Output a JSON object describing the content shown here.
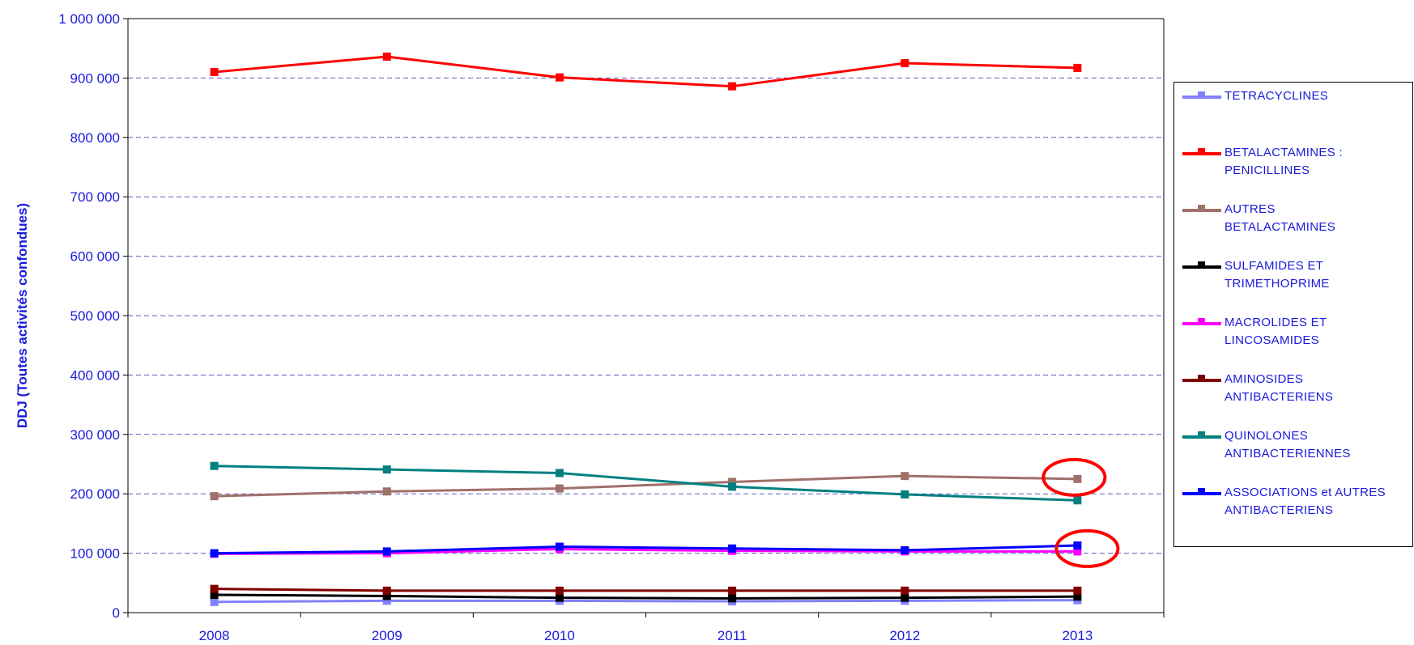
{
  "chart_data": {
    "type": "line",
    "title": "",
    "xlabel": "",
    "ylabel": "DDJ (Toutes activités confondues)",
    "categories": [
      "2008",
      "2009",
      "2010",
      "2011",
      "2012",
      "2013"
    ],
    "ylim": [
      0,
      1000000
    ],
    "yticks": [
      0,
      100000,
      200000,
      300000,
      400000,
      500000,
      600000,
      700000,
      800000,
      900000,
      1000000
    ],
    "ytick_labels": [
      "0",
      "100 000",
      "200 000",
      "300 000",
      "400 000",
      "500 000",
      "600 000",
      "700 000",
      "800 000",
      "900 000",
      "1 000 000"
    ],
    "grid": "horizontal dashed",
    "legend_position": "right",
    "series": [
      {
        "name": "TETRACYCLINES",
        "color": "#8080ff",
        "values": [
          18000,
          20000,
          20000,
          19000,
          20000,
          21000
        ]
      },
      {
        "name": "BETALACTAMINES :\nPENICILLINES",
        "color": "#ff0000",
        "values": [
          910000,
          936000,
          901000,
          886000,
          925000,
          917000
        ]
      },
      {
        "name": "AUTRES\nBETALACTAMINES",
        "color": "#a0706a",
        "values": [
          196000,
          204000,
          209000,
          220000,
          230000,
          225000
        ]
      },
      {
        "name": "SULFAMIDES ET\nTRIMETHOPRIME",
        "color": "#000000",
        "values": [
          30000,
          28000,
          25000,
          24000,
          25000,
          27000
        ]
      },
      {
        "name": "MACROLIDES ET\nLINCOSAMIDES",
        "color": "#ff00ff",
        "values": [
          99000,
          100000,
          107000,
          104000,
          103000,
          103000
        ]
      },
      {
        "name": "AMINOSIDES\nANTIBACTERIENS",
        "color": "#800000",
        "values": [
          40000,
          37000,
          37000,
          37000,
          37000,
          37000
        ]
      },
      {
        "name": "QUINOLONES\nANTIBACTERIENNES",
        "color": "#008080",
        "values": [
          247000,
          241000,
          235000,
          212000,
          199000,
          189000
        ]
      },
      {
        "name": "ASSOCIATIONS et AUTRES\nANTIBACTERIENS",
        "color": "#0000ff",
        "values": [
          100000,
          103000,
          111000,
          108000,
          105000,
          113000
        ]
      }
    ],
    "annotations": [
      {
        "type": "ellipse",
        "color": "#ff0000",
        "x": "2013",
        "y": 225000
      },
      {
        "type": "ellipse",
        "color": "#ff0000",
        "x": "2013",
        "y": 105000
      }
    ]
  }
}
